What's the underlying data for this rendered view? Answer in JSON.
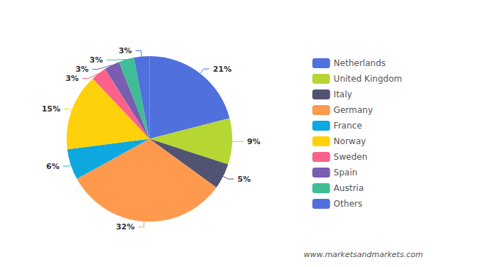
{
  "chart_data": {
    "type": "pie",
    "categories": [
      "Netherlands",
      "United Kingdom",
      "Italy",
      "Germany",
      "France",
      "Norway",
      "Sweden",
      "Spain",
      "Austria",
      "Others"
    ],
    "values": [
      21,
      9,
      5,
      32,
      6,
      15,
      3,
      3,
      3,
      3
    ],
    "value_labels": [
      "21%",
      "9%",
      "5%",
      "32%",
      "6%",
      "15%",
      "3%",
      "3%",
      "3%",
      "3%"
    ],
    "data_labels": true,
    "legend": "right",
    "annotations": [
      "www.marketsandmarkets.com"
    ]
  }
}
